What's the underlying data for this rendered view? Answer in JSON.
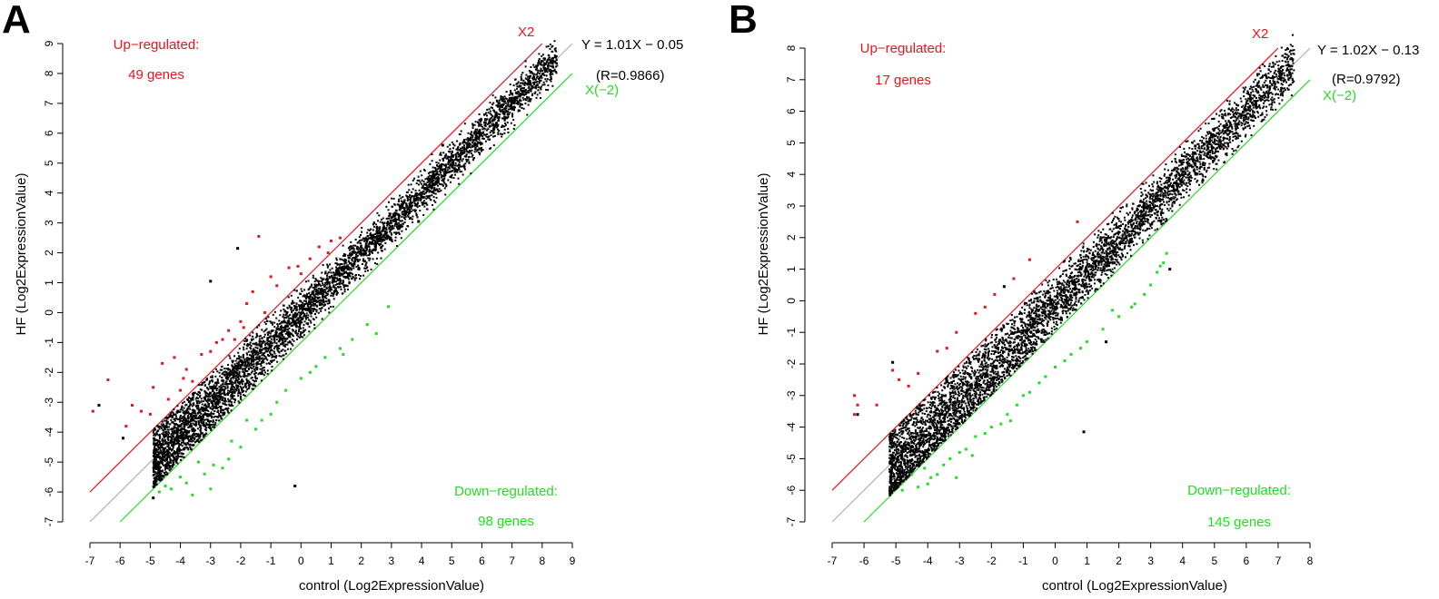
{
  "figure": {
    "panels": [
      "A",
      "B"
    ]
  },
  "chart_data": [
    {
      "panel_label": "A",
      "type": "scatter",
      "xlabel": "control (Log2ExpressionValue)",
      "ylabel": "HF (Log2ExpressionValue)",
      "xlim": [
        -7,
        9
      ],
      "ylim": [
        -7,
        9
      ],
      "xticks": [
        -7,
        -6,
        -5,
        -4,
        -3,
        -2,
        -1,
        0,
        1,
        2,
        3,
        4,
        5,
        6,
        7,
        8,
        9
      ],
      "yticks": [
        -7,
        -6,
        -5,
        -4,
        -3,
        -2,
        -1,
        0,
        1,
        2,
        3,
        4,
        5,
        6,
        7,
        8,
        9
      ],
      "reference_lines": [
        {
          "name": "X2",
          "label": "X2",
          "intercept": 1,
          "x_range": [
            -7,
            8
          ],
          "color": "#e8141c"
        },
        {
          "name": "identity",
          "label": "",
          "intercept": 0,
          "x_range": [
            -7,
            9
          ],
          "color": "#b0b0b0"
        },
        {
          "name": "X(-2)",
          "label": "X(−2)",
          "intercept": -1,
          "x_range": [
            -6,
            9
          ],
          "color": "#22dd22"
        }
      ],
      "regression": {
        "equation": "Y = 1.01X − 0.05",
        "r_label": "(R=0.9866)",
        "slope": 1.01,
        "intercept": -0.05
      },
      "up_regulated": {
        "label": "Up−regulated:",
        "count_label": "49 genes",
        "count": 49,
        "color": "#e8141c"
      },
      "down_regulated": {
        "label": "Down−regulated:",
        "count_label": "98 genes",
        "count": 98,
        "color": "#22dd22"
      },
      "bulk": {
        "x_range": [
          -4.9,
          8.5
        ],
        "sd": 0.32,
        "n": 5200,
        "color": "#000000"
      },
      "outlier_points": [
        [
          -0.2,
          -5.8
        ],
        [
          -3,
          1.05
        ],
        [
          -2.1,
          2.15
        ],
        [
          3.9,
          3.05
        ],
        [
          4.7,
          5.6
        ],
        [
          -6.7,
          -3.1
        ],
        [
          -5.9,
          -4.2
        ],
        [
          -4.9,
          -6.2
        ]
      ],
      "up_points": [
        [
          -6.4,
          -2.25
        ],
        [
          -6.9,
          -3.3
        ],
        [
          -5.3,
          -3.3
        ],
        [
          -4.9,
          -2.5
        ],
        [
          -4.6,
          -1.7
        ],
        [
          -4.2,
          -1.5
        ],
        [
          -3.8,
          -1.9
        ],
        [
          -3.6,
          -2.3
        ],
        [
          -3.3,
          -1.4
        ],
        [
          -2.8,
          -1.0
        ],
        [
          -2.4,
          -0.6
        ],
        [
          -2.0,
          -0.3
        ],
        [
          -1.8,
          0.3
        ],
        [
          -1.6,
          0.7
        ],
        [
          -1.4,
          2.55
        ],
        [
          -1.0,
          1.2
        ],
        [
          -0.8,
          0.9
        ],
        [
          -0.4,
          1.5
        ],
        [
          -0.1,
          1.55
        ],
        [
          0.3,
          1.8
        ],
        [
          0.6,
          2.2
        ],
        [
          1.0,
          2.4
        ],
        [
          1.3,
          2.5
        ],
        [
          -1.2,
          0.0
        ],
        [
          -2.6,
          -0.9
        ],
        [
          -3.0,
          -1.3
        ],
        [
          -4.4,
          -2.9
        ],
        [
          -5.0,
          -3.4
        ],
        [
          -5.6,
          -3.1
        ],
        [
          -4.0,
          -2.6
        ],
        [
          -2.2,
          -0.9
        ],
        [
          0.0,
          1.3
        ],
        [
          0.9,
          2.0
        ],
        [
          -5.8,
          -3.8
        ],
        [
          -3.9,
          -2.2
        ],
        [
          -1.9,
          -0.5
        ]
      ],
      "down_points": [
        [
          -3.6,
          -6.1
        ],
        [
          -3.0,
          -5.9
        ],
        [
          -2.6,
          -5.2
        ],
        [
          -2.0,
          -4.5
        ],
        [
          -1.5,
          -3.9
        ],
        [
          -1.0,
          -3.4
        ],
        [
          -0.5,
          -2.6
        ],
        [
          0.0,
          -2.2
        ],
        [
          0.5,
          -1.8
        ],
        [
          1.3,
          -1.2
        ],
        [
          2.2,
          -0.4
        ],
        [
          2.5,
          -0.7
        ],
        [
          -4.3,
          -5.9
        ],
        [
          -4.0,
          -5.5
        ],
        [
          -3.4,
          -5.0
        ],
        [
          -2.3,
          -4.3
        ],
        [
          -4.7,
          -6.0
        ],
        [
          -1.8,
          -3.6
        ],
        [
          -0.8,
          -3.0
        ],
        [
          0.8,
          -1.5
        ],
        [
          1.7,
          -0.9
        ],
        [
          -3.8,
          -5.7
        ],
        [
          -2.9,
          -5.1
        ],
        [
          -4.5,
          -5.8
        ],
        [
          -1.3,
          -3.6
        ],
        [
          0.3,
          -2.0
        ],
        [
          1.4,
          -1.4
        ],
        [
          2.9,
          0.2
        ],
        [
          -3.2,
          -5.4
        ],
        [
          -2.4,
          -4.9
        ]
      ]
    },
    {
      "panel_label": "B",
      "type": "scatter",
      "xlabel": "control (Log2ExpressionValue)",
      "ylabel": "HF (Log2ExpressionValue)",
      "xlim": [
        -7,
        8
      ],
      "ylim": [
        -7,
        8
      ],
      "xticks": [
        -7,
        -6,
        -5,
        -4,
        -3,
        -2,
        -1,
        0,
        1,
        2,
        3,
        4,
        5,
        6,
        7,
        8
      ],
      "yticks": [
        -7,
        -6,
        -5,
        -4,
        -3,
        -2,
        -1,
        0,
        1,
        2,
        3,
        4,
        5,
        6,
        7,
        8
      ],
      "reference_lines": [
        {
          "name": "X2",
          "label": "X2",
          "intercept": 1,
          "x_range": [
            -7,
            7
          ],
          "color": "#e8141c"
        },
        {
          "name": "identity",
          "label": "",
          "intercept": 0,
          "x_range": [
            -7,
            8
          ],
          "color": "#b0b0b0"
        },
        {
          "name": "X(-2)",
          "label": "X(−2)",
          "intercept": -1,
          "x_range": [
            -6,
            8
          ],
          "color": "#22dd22"
        }
      ],
      "regression": {
        "equation": "Y = 1.02X − 0.13",
        "r_label": "(R=0.9792)",
        "slope": 1.02,
        "intercept": -0.13
      },
      "up_regulated": {
        "label": "Up−regulated:",
        "count_label": "17 genes",
        "count": 17,
        "color": "#e8141c"
      },
      "down_regulated": {
        "label": "Down−regulated:",
        "count_label": "145 genes",
        "count": 145,
        "color": "#22dd22"
      },
      "bulk": {
        "x_range": [
          -5.2,
          7.5
        ],
        "sd": 0.4,
        "n": 5200,
        "color": "#000000"
      },
      "outlier_points": [
        [
          0.9,
          -4.15
        ],
        [
          -1.6,
          0.45
        ],
        [
          -5.1,
          -1.95
        ],
        [
          3.6,
          1.0
        ],
        [
          4.4,
          4.9
        ],
        [
          0.2,
          -0.6
        ],
        [
          -6.2,
          -3.6
        ],
        [
          1.6,
          -1.3
        ]
      ],
      "up_points": [
        [
          -6.3,
          -3.0
        ],
        [
          -6.2,
          -3.3
        ],
        [
          -6.3,
          -3.6
        ],
        [
          -5.1,
          -2.2
        ],
        [
          -4.9,
          -2.5
        ],
        [
          -4.6,
          -2.7
        ],
        [
          -3.7,
          -1.6
        ],
        [
          -3.1,
          -1.0
        ],
        [
          -2.5,
          -0.4
        ],
        [
          -1.9,
          0.2
        ],
        [
          -0.8,
          1.3
        ],
        [
          0.7,
          2.5
        ],
        [
          -4.3,
          -2.3
        ],
        [
          -3.4,
          -1.5
        ],
        [
          -2.2,
          -0.2
        ],
        [
          -5.6,
          -3.3
        ],
        [
          -1.3,
          0.7
        ]
      ],
      "down_points": [
        [
          -4.8,
          -6.0
        ],
        [
          -4.3,
          -5.9
        ],
        [
          -3.9,
          -5.6
        ],
        [
          -3.5,
          -5.2
        ],
        [
          -3.0,
          -4.8
        ],
        [
          -2.5,
          -4.3
        ],
        [
          -2.0,
          -4.0
        ],
        [
          -1.5,
          -3.6
        ],
        [
          -1.0,
          -3.0
        ],
        [
          -0.5,
          -2.6
        ],
        [
          0.0,
          -2.1
        ],
        [
          0.5,
          -1.7
        ],
        [
          1.0,
          -1.3
        ],
        [
          1.5,
          -0.9
        ],
        [
          2.0,
          -0.5
        ],
        [
          2.5,
          -0.1
        ],
        [
          3.0,
          0.5
        ],
        [
          3.2,
          0.9
        ],
        [
          3.4,
          1.2
        ],
        [
          3.5,
          1.5
        ],
        [
          2.4,
          -0.2
        ],
        [
          1.8,
          -0.3
        ],
        [
          -4.5,
          -5.5
        ],
        [
          -4.1,
          -5.3
        ],
        [
          -3.7,
          -5.5
        ],
        [
          -3.3,
          -5.0
        ],
        [
          -2.8,
          -4.7
        ],
        [
          -2.2,
          -4.2
        ],
        [
          -1.7,
          -3.9
        ],
        [
          -1.2,
          -3.3
        ],
        [
          -0.3,
          -2.4
        ],
        [
          0.8,
          -1.5
        ],
        [
          -4.0,
          -5.8
        ],
        [
          -3.1,
          -5.6
        ],
        [
          -2.6,
          -4.9
        ],
        [
          -1.4,
          -3.8
        ],
        [
          2.8,
          0.2
        ],
        [
          3.3,
          1.1
        ],
        [
          -0.8,
          -2.9
        ],
        [
          0.3,
          -1.9
        ]
      ]
    }
  ]
}
